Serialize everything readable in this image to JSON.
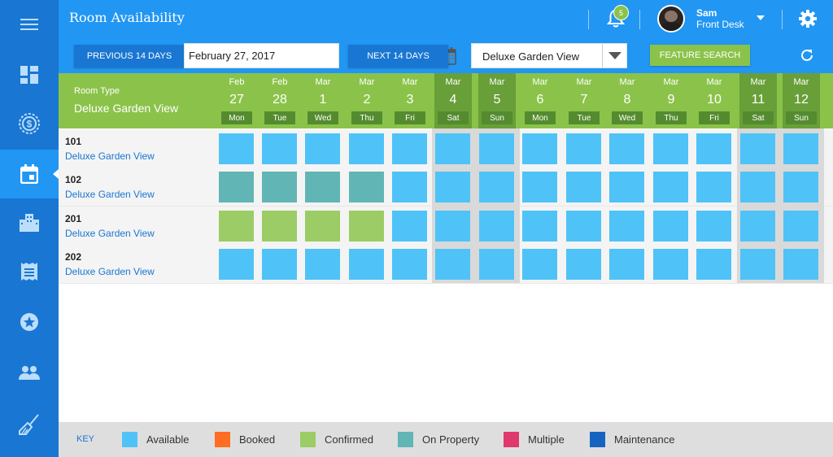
{
  "header": {
    "title": "Room Availability",
    "notification_count": "5",
    "user": {
      "name": "Sam",
      "role": "Front Desk"
    }
  },
  "toolbar": {
    "prev_label": "PREVIOUS 14 DAYS",
    "date_value": "February 27, 2017",
    "next_label": "NEXT 14 DAYS",
    "room_type_selected": "Deluxe Garden View",
    "feature_search_label": "FEATURE SEARCH"
  },
  "grid": {
    "room_type_label": "Room Type",
    "room_type_value": "Deluxe Garden View",
    "days": [
      {
        "month": "Feb",
        "day": "27",
        "weekday": "Mon",
        "weekend": false
      },
      {
        "month": "Feb",
        "day": "28",
        "weekday": "Tue",
        "weekend": false
      },
      {
        "month": "Mar",
        "day": "1",
        "weekday": "Wed",
        "weekend": false
      },
      {
        "month": "Mar",
        "day": "2",
        "weekday": "Thu",
        "weekend": false
      },
      {
        "month": "Mar",
        "day": "3",
        "weekday": "Fri",
        "weekend": false
      },
      {
        "month": "Mar",
        "day": "4",
        "weekday": "Sat",
        "weekend": true
      },
      {
        "month": "Mar",
        "day": "5",
        "weekday": "Sun",
        "weekend": true
      },
      {
        "month": "Mar",
        "day": "6",
        "weekday": "Mon",
        "weekend": false
      },
      {
        "month": "Mar",
        "day": "7",
        "weekday": "Tue",
        "weekend": false
      },
      {
        "month": "Mar",
        "day": "8",
        "weekday": "Wed",
        "weekend": false
      },
      {
        "month": "Mar",
        "day": "9",
        "weekday": "Thu",
        "weekend": false
      },
      {
        "month": "Mar",
        "day": "10",
        "weekday": "Fri",
        "weekend": false
      },
      {
        "month": "Mar",
        "day": "11",
        "weekday": "Sat",
        "weekend": true
      },
      {
        "month": "Mar",
        "day": "12",
        "weekday": "Sun",
        "weekend": true
      }
    ],
    "rooms": [
      {
        "number": "101",
        "type": "Deluxe Garden View",
        "statuses": [
          "available",
          "available",
          "available",
          "available",
          "available",
          "available",
          "available",
          "available",
          "available",
          "available",
          "available",
          "available",
          "available",
          "available"
        ]
      },
      {
        "number": "102",
        "type": "Deluxe Garden View",
        "statuses": [
          "on_property",
          "on_property",
          "on_property",
          "on_property",
          "available",
          "available",
          "available",
          "available",
          "available",
          "available",
          "available",
          "available",
          "available",
          "available"
        ]
      },
      {
        "number": "201",
        "type": "Deluxe Garden View",
        "statuses": [
          "confirmed",
          "confirmed",
          "confirmed",
          "confirmed",
          "available",
          "available",
          "available",
          "available",
          "available",
          "available",
          "available",
          "available",
          "available",
          "available"
        ]
      },
      {
        "number": "202",
        "type": "Deluxe Garden View",
        "statuses": [
          "available",
          "available",
          "available",
          "available",
          "available",
          "available",
          "available",
          "available",
          "available",
          "available",
          "available",
          "available",
          "available",
          "available"
        ]
      }
    ]
  },
  "key": {
    "label": "KEY",
    "items": [
      {
        "id": "available",
        "label": "Available",
        "color": "#4fc3f7"
      },
      {
        "id": "booked",
        "label": "Booked",
        "color": "#ff6d22"
      },
      {
        "id": "confirmed",
        "label": "Confirmed",
        "color": "#9ccc65"
      },
      {
        "id": "on_property",
        "label": "On Property",
        "color": "#62b5b5"
      },
      {
        "id": "multiple",
        "label": "Multiple",
        "color": "#e0396d"
      },
      {
        "id": "maintenance",
        "label": "Maintenance",
        "color": "#1565c0"
      }
    ]
  },
  "sidebar": {
    "items": [
      {
        "icon": "menu-icon"
      },
      {
        "icon": "dashboard-icon"
      },
      {
        "icon": "billing-icon"
      },
      {
        "icon": "calendar-icon",
        "active": true
      },
      {
        "icon": "hotel-icon"
      },
      {
        "icon": "receipt-icon"
      },
      {
        "icon": "star-icon"
      },
      {
        "icon": "guests-icon"
      },
      {
        "icon": "housekeeping-icon"
      }
    ]
  }
}
